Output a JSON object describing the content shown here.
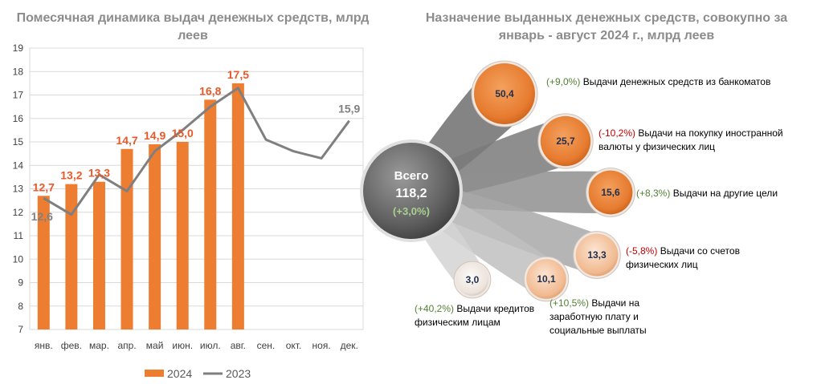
{
  "left_title": "Помесячная динамика выдач денежных средств, млрд леев",
  "right_title": "Назначение выданных денежных средств, совокупно за январь - август 2024 г., млрд леев",
  "colors": {
    "bar": "#ed7d31",
    "line": "#7f7f7f",
    "bar_label": "#e8592a",
    "line_label": "#808080",
    "positive": "#538135",
    "negative": "#c00000"
  },
  "chart_data": [
    {
      "type": "bar",
      "title": "Помесячная динамика выдач денежных средств, млрд леев",
      "categories": [
        "янв.",
        "фев.",
        "мар.",
        "апр.",
        "май",
        "июн.",
        "июл.",
        "авг.",
        "сен.",
        "окт.",
        "ноя.",
        "дек."
      ],
      "ylim": [
        7,
        19
      ],
      "yticks": [
        "7",
        "8",
        "9",
        "10",
        "11",
        "12",
        "13",
        "14",
        "15",
        "16",
        "17",
        "18",
        "19"
      ],
      "grid": true,
      "legend": "bottom",
      "series": [
        {
          "name": "2024",
          "kind": "bar",
          "values": [
            12.7,
            13.2,
            13.3,
            14.7,
            14.9,
            15.0,
            16.8,
            17.5,
            null,
            null,
            null,
            null
          ],
          "labels": [
            "12,7",
            "13,2",
            "13,3",
            "14,7",
            "14,9",
            "15,0",
            "16,8",
            "17,5",
            "",
            "",
            "",
            ""
          ]
        },
        {
          "name": "2023",
          "kind": "line",
          "values": [
            12.6,
            11.9,
            13.6,
            12.9,
            14.6,
            15.5,
            16.5,
            17.3,
            15.1,
            14.6,
            14.3,
            15.9
          ],
          "labels": [
            "12,6",
            "",
            "",
            "",
            "",
            "",
            "",
            "",
            "",
            "",
            "",
            "15,9"
          ]
        }
      ]
    },
    {
      "type": "bubble",
      "title": "Назначение выданных денежных средств, совокупно за январь - август 2024 г., млрд леев",
      "total": {
        "label": "Всего",
        "value": "118,2",
        "change": "(+3,0%)"
      },
      "items": [
        {
          "value": 50.4,
          "value_label": "50,4",
          "change": "(+9,0%)",
          "direction": "positive",
          "text": "Выдачи денежных средств из банкоматов"
        },
        {
          "value": 25.7,
          "value_label": "25,7",
          "change": "(-10,2%)",
          "direction": "negative",
          "text": "Выдачи на покупку иностранной валюты у физических лиц"
        },
        {
          "value": 15.6,
          "value_label": "15,6",
          "change": "(+8,3%)",
          "direction": "positive",
          "text": "Выдачи на другие цели"
        },
        {
          "value": 13.3,
          "value_label": "13,3",
          "change": "(-5,8%)",
          "direction": "negative",
          "text": "Выдачи со счетов физических лиц"
        },
        {
          "value": 10.1,
          "value_label": "10,1",
          "change": "(+10,5%)",
          "direction": "positive",
          "text": "Выдачи на заработную плату и социальные выплаты"
        },
        {
          "value": 3.0,
          "value_label": "3,0",
          "change": "(+40,2%)",
          "direction": "positive",
          "text": "Выдачи кредитов физическим лицам"
        }
      ]
    }
  ]
}
